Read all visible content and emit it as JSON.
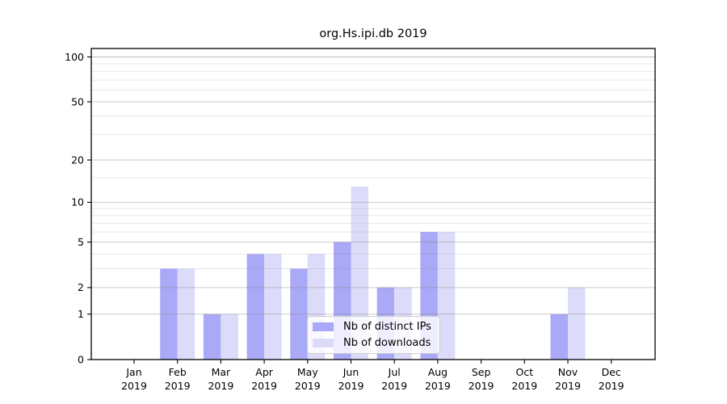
{
  "figure": {
    "title": "org.Hs.ipi.db 2019"
  },
  "legend": {
    "items": [
      {
        "label": "Nb of distinct IPs",
        "color": "#a9a9f7"
      },
      {
        "label": "Nb of downloads",
        "color": "#dcdcfa"
      }
    ]
  },
  "chart_data": {
    "type": "bar",
    "title": "org.Hs.ipi.db 2019",
    "categories": [
      "Jan 2019",
      "Feb 2019",
      "Mar 2019",
      "Apr 2019",
      "May 2019",
      "Jun 2019",
      "Jul 2019",
      "Aug 2019",
      "Sep 2019",
      "Oct 2019",
      "Nov 2019",
      "Dec 2019"
    ],
    "series": [
      {
        "name": "Nb of distinct IPs",
        "color": "#a9a9f7",
        "values": [
          0,
          3,
          1,
          4,
          3,
          5,
          2,
          6,
          0,
          0,
          1,
          0
        ]
      },
      {
        "name": "Nb of downloads",
        "color": "#dcdcfa",
        "values": [
          0,
          3,
          1,
          4,
          4,
          13,
          2,
          6,
          0,
          0,
          2,
          0
        ]
      }
    ],
    "xlabel": "",
    "ylabel": "",
    "yscale": "log1p",
    "ylim": [
      0,
      114
    ],
    "yticks": [
      0,
      1,
      2,
      5,
      10,
      20,
      50,
      100
    ],
    "yticks_minor": [
      3,
      4,
      6,
      7,
      8,
      9,
      15,
      30,
      40,
      60,
      70,
      80,
      90
    ],
    "grid": true,
    "legend_position": "inside lower-center"
  }
}
